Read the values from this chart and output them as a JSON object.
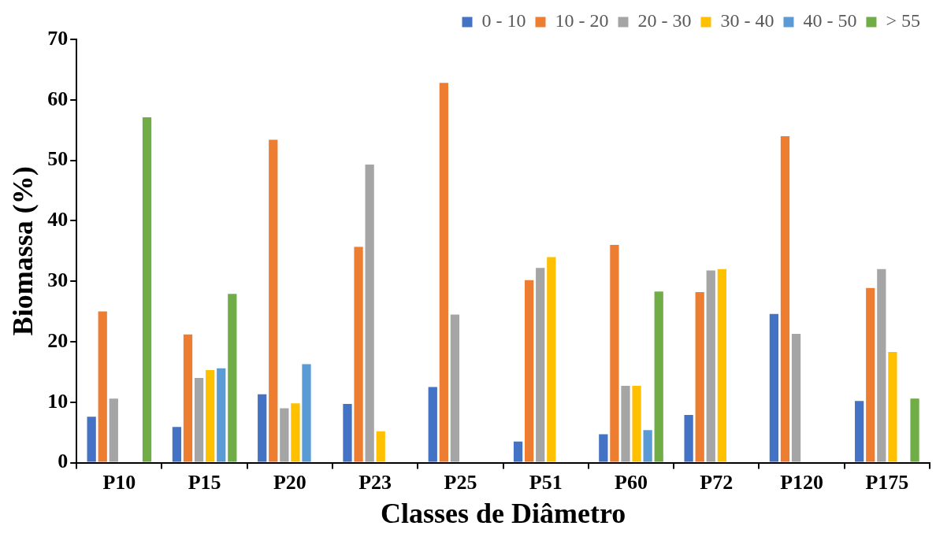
{
  "chart_data": {
    "type": "bar",
    "xlabel": "Classes de Diâmetro",
    "ylabel": "Biomassa (%)",
    "categories": [
      "P10",
      "P15",
      "P20",
      "P23",
      "P25",
      "P51",
      "P60",
      "P72",
      "P120",
      "P175"
    ],
    "series": [
      {
        "name": "0 - 10",
        "color": "#4472c4",
        "values": [
          7.6,
          5.9,
          11.3,
          9.7,
          12.5,
          3.5,
          4.7,
          7.9,
          24.6,
          10.2
        ]
      },
      {
        "name": "10 - 20",
        "color": "#ed7d31",
        "values": [
          25.0,
          21.2,
          53.4,
          35.7,
          62.8,
          30.2,
          36.0,
          28.2,
          54.0,
          28.9
        ]
      },
      {
        "name": "20 - 30",
        "color": "#a5a5a5",
        "values": [
          10.6,
          14.0,
          9.0,
          49.3,
          24.5,
          32.2,
          12.7,
          31.8,
          21.3,
          32.0
        ]
      },
      {
        "name": "30 - 40",
        "color": "#ffc000",
        "values": [
          null,
          15.3,
          9.8,
          5.2,
          null,
          34.0,
          12.7,
          32.0,
          null,
          18.3
        ]
      },
      {
        "name": "40 - 50",
        "color": "#5b9bd5",
        "values": [
          null,
          15.6,
          16.3,
          null,
          null,
          null,
          5.4,
          null,
          null,
          null
        ]
      },
      {
        "name": "> 55",
        "color": "#70ad47",
        "values": [
          57.1,
          27.9,
          null,
          null,
          null,
          null,
          28.3,
          null,
          null,
          10.6
        ]
      }
    ],
    "ylim": [
      0,
      70
    ],
    "yticks": [
      0,
      10,
      20,
      30,
      40,
      50,
      60,
      70
    ],
    "grid": false,
    "legend": "top right"
  }
}
